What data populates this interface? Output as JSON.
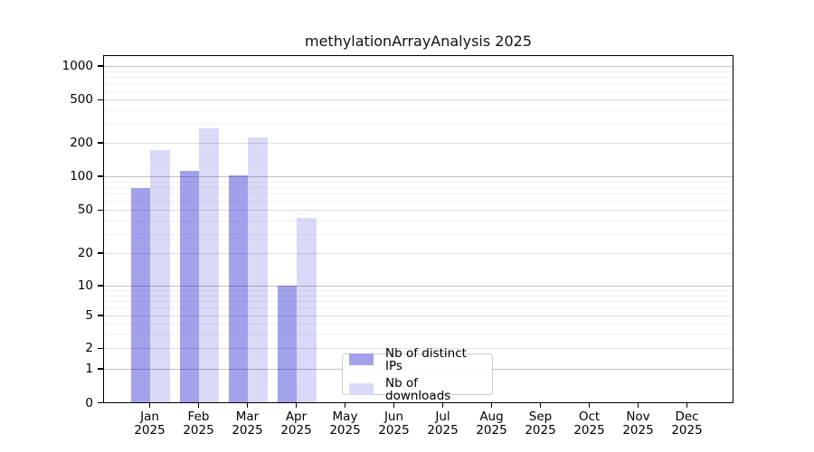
{
  "chart_data": {
    "type": "bar",
    "title": "methylationArrayAnalysis 2025",
    "categories": [
      "Jan 2025",
      "Feb 2025",
      "Mar 2025",
      "Apr 2025",
      "May 2025",
      "Jun 2025",
      "Jul 2025",
      "Aug 2025",
      "Sep 2025",
      "Oct 2025",
      "Nov 2025",
      "Dec 2025"
    ],
    "series": [
      {
        "name": "Nb of distinct IPs",
        "color": "#a2a2ec",
        "values": [
          78,
          112,
          102,
          10,
          0,
          0,
          0,
          0,
          0,
          0,
          0,
          0
        ]
      },
      {
        "name": "Nb of downloads",
        "color": "#d9d9f8",
        "values": [
          172,
          270,
          225,
          42,
          0,
          0,
          0,
          0,
          0,
          0,
          0,
          0
        ]
      }
    ],
    "y_axis": {
      "scale": "log-like",
      "tick_labels": [
        "0",
        "1",
        "2",
        "5",
        "10",
        "20",
        "50",
        "100",
        "200",
        "500",
        "1000"
      ],
      "range": [
        0,
        1000
      ],
      "grid": "horizontal major + minor"
    },
    "x_axis": {
      "tick_labels_two_lines": true
    },
    "legend": {
      "entries": [
        "Nb of distinct IPs",
        "Nb of downloads"
      ],
      "position": "lower-center-inside"
    }
  }
}
